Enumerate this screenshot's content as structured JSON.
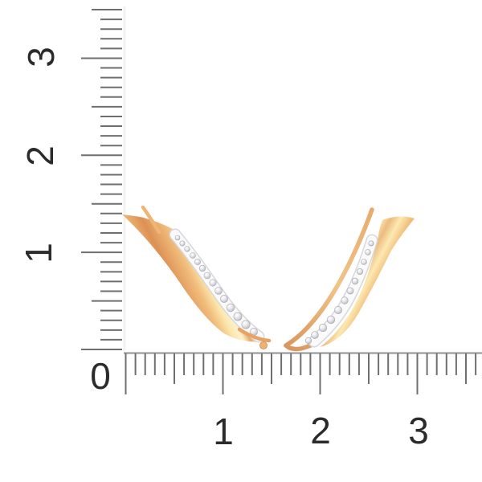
{
  "page": {
    "subject": "Pair of gold ear climber earrings with diamond pave accents shown against a white background with centimeter ruler guides"
  },
  "ruler": {
    "origin_label": "0",
    "vertical_labels": [
      "1",
      "2",
      "3"
    ],
    "horizontal_labels": [
      "1",
      "2",
      "3"
    ]
  },
  "earrings": {
    "left": {
      "name": "left earring front view",
      "stone_count": 14
    },
    "right": {
      "name": "right earring angled back view",
      "stone_count": 12
    }
  },
  "colors": {
    "gold_highlight": "#fdf2cd",
    "gold_light": "#fce7ae",
    "gold_mid": "#f2bf7e",
    "gold_deep": "#e8a666",
    "gold_edge": "#dc9254",
    "white_gold": "#fafafb",
    "white_gold_rim": "#d7d7dc",
    "stone": "#c9cad0",
    "tick": "#6f6f6f",
    "baseline": "#909090",
    "label_text": "#2b2b2b"
  }
}
